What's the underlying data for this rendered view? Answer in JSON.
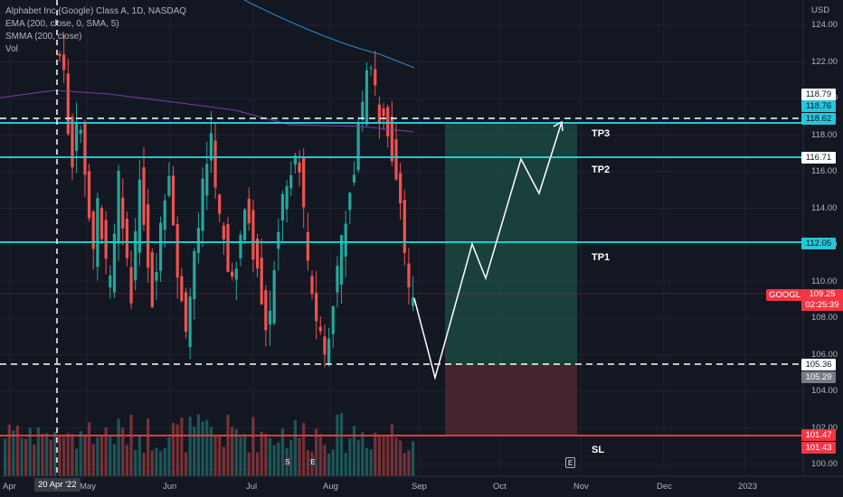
{
  "legend": {
    "title": "Alphabet Inc (Google) Class A, 1D, NASDAQ",
    "ema": "EMA (200, close, 0, SMA, 5)",
    "smma": "SMMA (200, close)",
    "vol": "Vol"
  },
  "axis": {
    "currency": "USD",
    "ticks": [
      "124.00",
      "122.00",
      "120.00",
      "118.00",
      "116.00",
      "114.00",
      "112.00",
      "110.00",
      "108.00",
      "106.00",
      "104.00",
      "102.00",
      "100.00"
    ]
  },
  "price_tags": [
    {
      "label": "118.79",
      "bg": "#ffffff",
      "fg": "#131722"
    },
    {
      "label": "118.76",
      "bg": "#26c6da",
      "fg": "#131722"
    },
    {
      "label": "118.62",
      "bg": "#26c6da",
      "fg": "#131722"
    },
    {
      "label": "116.71",
      "bg": "#ffffff",
      "fg": "#131722"
    },
    {
      "label": "112.05",
      "bg": "#26c6da",
      "fg": "#131722"
    },
    {
      "label": "105.36",
      "bg": "#ffffff",
      "fg": "#131722"
    },
    {
      "label": "105.29",
      "bg": "#787b86",
      "fg": "#ffffff"
    },
    {
      "label": "101.47",
      "bg": "#f23645",
      "fg": "#ffffff"
    },
    {
      "label": "101.43",
      "bg": "#f23645",
      "fg": "#ffffff"
    }
  ],
  "current": {
    "symbol": "GOOGL",
    "price": "109.25",
    "countdown": "02:25:39"
  },
  "levels": {
    "tp3": "TP3",
    "tp2": "TP2",
    "tp1": "TP1",
    "sl": "SL"
  },
  "x_axis": [
    "Apr",
    "May",
    "Jun",
    "Jul",
    "Aug",
    "Sep",
    "Oct",
    "Nov",
    "Dec",
    "2023"
  ],
  "crosshair_date": "20 Apr '22",
  "events": [
    "S",
    "E",
    "E"
  ],
  "colors": {
    "up": "#26a69a",
    "down": "#ef5350",
    "cyan": "#26c6da",
    "red_line": "#f23645",
    "ema": "#2a8bd1",
    "smma": "#7b3fa3"
  }
}
